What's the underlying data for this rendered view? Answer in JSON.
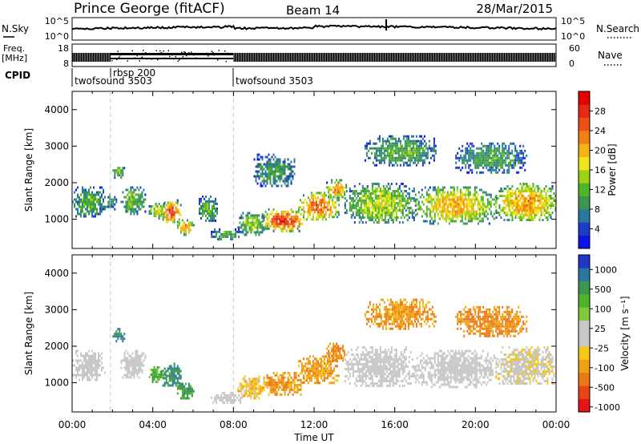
{
  "header": {
    "title": "Prince George (fitACF)",
    "beam": "Beam 14",
    "date": "28/Mar/2015"
  },
  "noise_panel": {
    "left_label": "N.Sky",
    "right_label": "N.Search",
    "left_ticks": [
      "10^5",
      "10^0"
    ],
    "right_ticks": [
      "10^5",
      "10^0"
    ]
  },
  "freq_panel": {
    "left_label_line1": "Freq.",
    "left_label_line2": "[MHz]",
    "right_label": "Nave",
    "left_ticks": [
      "18",
      "8"
    ],
    "right_ticks": [
      "60",
      "0"
    ]
  },
  "cpid": {
    "label": "CPID",
    "segments": [
      {
        "start_hour": 0,
        "name": "twofsound 3503"
      },
      {
        "start_hour": 1.9,
        "name": "rbsp 200"
      },
      {
        "start_hour": 8.0,
        "name": "twofsound 3503"
      }
    ]
  },
  "chart_data": [
    {
      "type": "heatmap",
      "name": "power",
      "ylabel": "Slant Range [km]",
      "ylim": [
        200,
        4500
      ],
      "yticks": [
        1000,
        2000,
        3000,
        4000
      ],
      "xlim": [
        0,
        24
      ],
      "colorbar": {
        "label": "Power [dB]",
        "range": [
          0,
          32
        ],
        "ticks": [
          "4",
          "8",
          "12",
          "16",
          "20",
          "24",
          "28"
        ],
        "colors": [
          "#0a14e6",
          "#1e3cc8",
          "#2878a0",
          "#3c9650",
          "#50b428",
          "#a0d214",
          "#f0e61e",
          "#f5b414",
          "#f08214",
          "#eb5014",
          "#e62814",
          "#e60000"
        ]
      },
      "blobs": [
        {
          "t": [
            0.0,
            1.6
          ],
          "r": [
            1050,
            1900
          ],
          "level": 0.35
        },
        {
          "t": [
            1.6,
            2.2
          ],
          "r": [
            1300,
            1700
          ],
          "level": 0.3
        },
        {
          "t": [
            2.0,
            2.6
          ],
          "r": [
            2150,
            2500
          ],
          "level": 0.4
        },
        {
          "t": [
            2.4,
            3.6
          ],
          "r": [
            1150,
            1900
          ],
          "level": 0.4
        },
        {
          "t": [
            3.8,
            4.6
          ],
          "r": [
            1050,
            1450
          ],
          "level": 0.55
        },
        {
          "t": [
            4.4,
            5.4
          ],
          "r": [
            900,
            1550
          ],
          "level": 0.85
        },
        {
          "t": [
            5.2,
            6.0
          ],
          "r": [
            600,
            1000
          ],
          "level": 0.75
        },
        {
          "t": [
            6.2,
            7.2
          ],
          "r": [
            950,
            1650
          ],
          "level": 0.35
        },
        {
          "t": [
            6.8,
            8.4
          ],
          "r": [
            450,
            750
          ],
          "level": 0.35
        },
        {
          "t": [
            8.2,
            9.5
          ],
          "r": [
            600,
            1200
          ],
          "level": 0.45
        },
        {
          "t": [
            9.4,
            11.5
          ],
          "r": [
            700,
            1300
          ],
          "level": 0.9
        },
        {
          "t": [
            11.2,
            13.2
          ],
          "r": [
            1000,
            1750
          ],
          "level": 0.8
        },
        {
          "t": [
            12.6,
            13.6
          ],
          "r": [
            1600,
            2100
          ],
          "level": 0.7
        },
        {
          "t": [
            9.0,
            11.0
          ],
          "r": [
            1900,
            2800
          ],
          "level": 0.3
        },
        {
          "t": [
            13.5,
            17.0
          ],
          "r": [
            900,
            2000
          ],
          "level": 0.5
        },
        {
          "t": [
            14.5,
            18.0
          ],
          "r": [
            2500,
            3300
          ],
          "level": 0.35
        },
        {
          "t": [
            17.0,
            21.0
          ],
          "r": [
            900,
            1900
          ],
          "level": 0.65
        },
        {
          "t": [
            19.0,
            22.5
          ],
          "r": [
            2300,
            3100
          ],
          "level": 0.3
        },
        {
          "t": [
            21.0,
            24.0
          ],
          "r": [
            950,
            2000
          ],
          "level": 0.7
        }
      ]
    },
    {
      "type": "heatmap",
      "name": "velocity",
      "ylabel": "Slant Range [km]",
      "ylim": [
        200,
        4500
      ],
      "yticks": [
        1000,
        2000,
        3000,
        4000
      ],
      "xlim": [
        0,
        24
      ],
      "xticks": [
        "00:00",
        "04:00",
        "08:00",
        "12:00",
        "16:00",
        "20:00",
        "00:00"
      ],
      "xlabel": "Time UT",
      "colorbar": {
        "label": "Velocity [m s⁻¹]",
        "range": [
          -1200,
          1200
        ],
        "ticks": [
          "1000",
          "500",
          "100",
          "25",
          "-25",
          "-100",
          "-500",
          "-1000"
        ],
        "colors": [
          "#2038c8",
          "#2878a0",
          "#3c9650",
          "#50b428",
          "#82c83c",
          "#c8c8c8",
          "#c8c8c8",
          "#f5c814",
          "#f0a014",
          "#eb7814",
          "#e64614",
          "#e61414"
        ]
      },
      "blobs": [
        {
          "t": [
            0.0,
            1.6
          ],
          "r": [
            1050,
            1900
          ],
          "v": 0.0
        },
        {
          "t": [
            2.0,
            2.6
          ],
          "r": [
            2150,
            2500
          ],
          "v": 0.75
        },
        {
          "t": [
            2.4,
            3.6
          ],
          "r": [
            1150,
            1900
          ],
          "v": 0.0
        },
        {
          "t": [
            3.8,
            4.6
          ],
          "r": [
            1050,
            1450
          ],
          "v": 0.45
        },
        {
          "t": [
            4.4,
            5.4
          ],
          "r": [
            900,
            1550
          ],
          "v": 0.7
        },
        {
          "t": [
            5.2,
            6.0
          ],
          "r": [
            600,
            1000
          ],
          "v": 0.6
        },
        {
          "t": [
            6.8,
            8.4
          ],
          "r": [
            450,
            750
          ],
          "v": 0.0
        },
        {
          "t": [
            8.2,
            9.5
          ],
          "r": [
            600,
            1200
          ],
          "v": -0.3
        },
        {
          "t": [
            9.4,
            11.5
          ],
          "r": [
            700,
            1300
          ],
          "v": -0.5
        },
        {
          "t": [
            11.2,
            13.2
          ],
          "r": [
            1000,
            1750
          ],
          "v": -0.45
        },
        {
          "t": [
            12.6,
            13.6
          ],
          "r": [
            1600,
            2100
          ],
          "v": -0.55
        },
        {
          "t": [
            13.5,
            17.0
          ],
          "r": [
            900,
            2000
          ],
          "v": 0.0
        },
        {
          "t": [
            14.5,
            18.0
          ],
          "r": [
            2500,
            3300
          ],
          "v": -0.5
        },
        {
          "t": [
            17.0,
            21.0
          ],
          "r": [
            900,
            1900
          ],
          "v": 0.0
        },
        {
          "t": [
            19.0,
            22.5
          ],
          "r": [
            2300,
            3100
          ],
          "v": -0.55
        },
        {
          "t": [
            21.0,
            24.0
          ],
          "r": [
            950,
            2000
          ],
          "v": -0.1
        }
      ]
    }
  ]
}
